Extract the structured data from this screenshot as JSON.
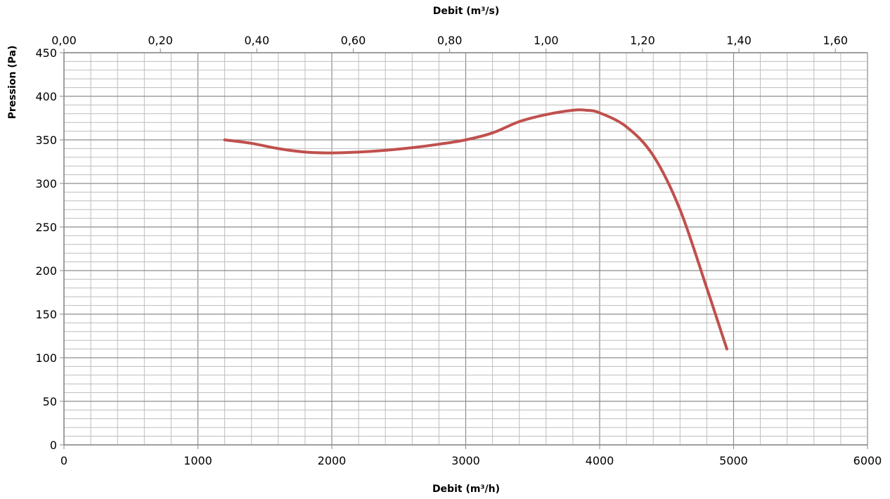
{
  "chart_data": {
    "type": "line",
    "title": "",
    "xlabel": "Debit (m³/h)",
    "x2label": "Debit (m³/s)",
    "ylabel": "Pression (Pa)",
    "xlim": [
      0,
      6000
    ],
    "x2lim": [
      0,
      1.6667
    ],
    "ylim": [
      0,
      450
    ],
    "x_ticks": [
      0,
      1000,
      2000,
      3000,
      4000,
      5000,
      6000
    ],
    "x_tick_labels": [
      "0",
      "1000",
      "2000",
      "3000",
      "4000",
      "5000",
      "6000"
    ],
    "x2_ticks": [
      0,
      0.2,
      0.4,
      0.6,
      0.8,
      1.0,
      1.2,
      1.4,
      1.6
    ],
    "x2_tick_labels": [
      "0,00",
      "0,20",
      "0,40",
      "0,60",
      "0,80",
      "1,00",
      "1,20",
      "1,40",
      "1,60"
    ],
    "y_ticks": [
      0,
      50,
      100,
      150,
      200,
      250,
      300,
      350,
      400,
      450
    ],
    "y_tick_labels": [
      "0",
      "50",
      "100",
      "150",
      "200",
      "250",
      "300",
      "350",
      "400",
      "450"
    ],
    "grid": true,
    "grid_x_minor_step": 200,
    "grid_y_minor_step": 10,
    "series_color": "#c0504d",
    "series": [
      {
        "x": [
          1200,
          1400,
          1600,
          1800,
          2000,
          2200,
          2400,
          2600,
          2800,
          3000,
          3200,
          3400,
          3600,
          3800,
          3900,
          4000,
          4200,
          4400,
          4600,
          4800,
          4950
        ],
        "y": [
          350,
          346,
          340,
          336,
          335,
          336,
          338,
          341,
          345,
          350,
          358,
          371,
          379,
          384,
          384,
          381,
          365,
          332,
          270,
          180,
          110
        ]
      }
    ]
  }
}
